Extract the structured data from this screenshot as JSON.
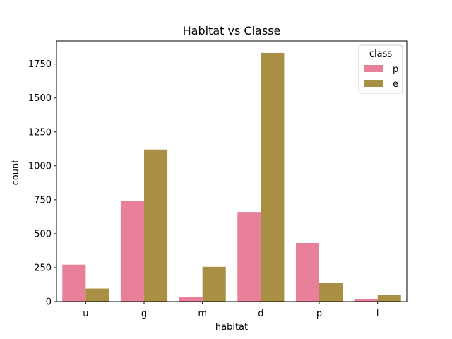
{
  "chart_data": {
    "type": "bar",
    "title": "Habitat vs Classe",
    "xlabel": "habitat",
    "ylabel": "count",
    "categories": [
      "u",
      "g",
      "m",
      "d",
      "p",
      "l"
    ],
    "series": [
      {
        "name": "p",
        "color": "#e8809a",
        "values": [
          272,
          740,
          36,
          660,
          432,
          16
        ]
      },
      {
        "name": "e",
        "color": "#a98f44",
        "values": [
          96,
          1120,
          256,
          1832,
          136,
          48
        ]
      }
    ],
    "ylim": [
      0,
      1920
    ],
    "yticks": [
      0,
      250,
      500,
      750,
      1000,
      1250,
      1500,
      1750
    ],
    "legend": {
      "title": "class",
      "placement": "top-right"
    },
    "grid": false
  }
}
